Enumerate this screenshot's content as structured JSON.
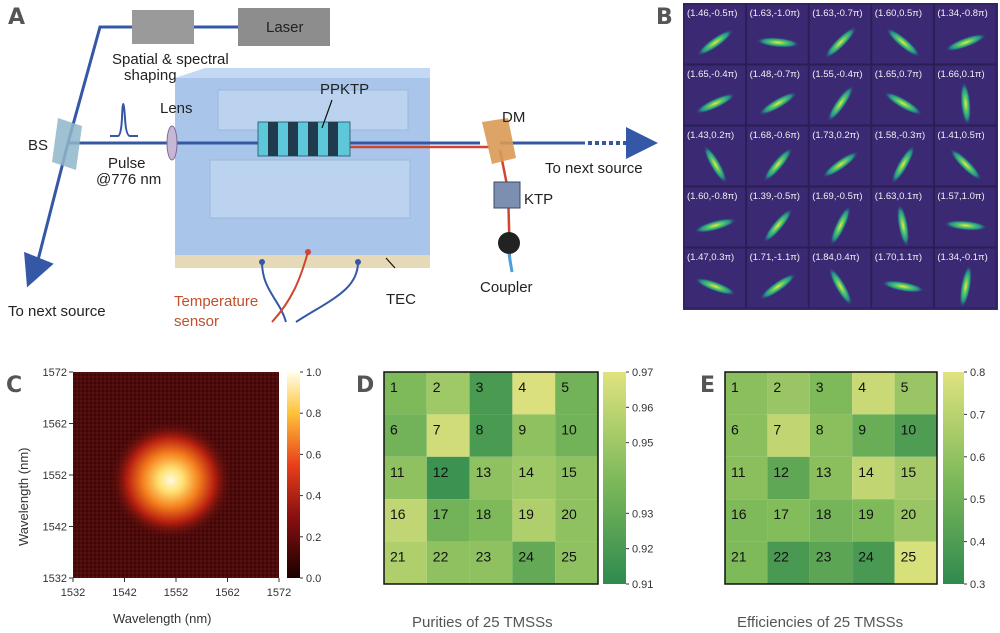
{
  "panels": {
    "a": "A",
    "b": "B",
    "c": "C",
    "d": "D",
    "e": "E"
  },
  "setup_labels": {
    "laser": "Laser",
    "shaping": [
      "Spatial & spectral",
      "shaping"
    ],
    "lens": "Lens",
    "ppktp": "PPKTP",
    "dm": "DM",
    "bs": "BS",
    "pulse": "Pulse",
    "wavelength": "@776 nm",
    "next_right": "To next source",
    "next_left": "To next source",
    "ktp": "KTP",
    "coupler": "Coupler",
    "tec": "TEC",
    "temperature": [
      "Temperature",
      "sensor"
    ]
  },
  "colors": {
    "beam_blue": "#3558a6",
    "beam_red": "#d2452f",
    "table_blue": "#a9c6ea",
    "viridis_low": "#2f8a4e",
    "viridis_high": "#e0e37f",
    "hot_bg": "#4a0a0a"
  },
  "b_grid": [
    [
      "(1.46,-0.5π)",
      "(1.63,-1.0π)",
      "(1.63,-0.7π)",
      "(1.60,0.5π)",
      "(1.34,-0.8π)"
    ],
    [
      "(1.65,-0.4π)",
      "(1.48,-0.7π)",
      "(1.55,-0.4π)",
      "(1.65,0.7π)",
      "(1.66,0.1π)"
    ],
    [
      "(1.43,0.2π)",
      "(1.68,-0.6π)",
      "(1.73,0.2π)",
      "(1.58,-0.3π)",
      "(1.41,0.5π)"
    ],
    [
      "(1.60,-0.8π)",
      "(1.39,-0.5π)",
      "(1.69,-0.5π)",
      "(1.63,0.1π)",
      "(1.57,1.0π)"
    ],
    [
      "(1.47,0.3π)",
      "(1.71,-1.1π)",
      "(1.84,0.4π)",
      "(1.70,1.1π)",
      "(1.34,-0.1π)"
    ]
  ],
  "b_angles": [
    [
      -35,
      5,
      -45,
      40,
      -20
    ],
    [
      -25,
      -30,
      -55,
      30,
      85
    ],
    [
      60,
      -50,
      -35,
      -60,
      45
    ],
    [
      -15,
      -50,
      -65,
      80,
      5
    ],
    [
      20,
      -35,
      60,
      10,
      -80
    ]
  ],
  "chart_data": [
    {
      "type": "heatmap",
      "panel": "C",
      "xlabel": "Wavelength (nm)",
      "ylabel": "Wavelength (nm)",
      "xticks": [
        "1532",
        "1542",
        "1552",
        "1562",
        "1572"
      ],
      "yticks": [
        "1572",
        "1562",
        "1552",
        "1542",
        "1532"
      ],
      "xlim": [
        1532,
        1572
      ],
      "ylim": [
        1532,
        1572
      ],
      "center": [
        1551,
        1551
      ],
      "colorbar_ticks": [
        "1.0",
        "0.8",
        "0.6",
        "0.4",
        "0.2",
        "0.0"
      ],
      "colorbar_range": [
        0,
        1
      ]
    },
    {
      "type": "heatmap",
      "panel": "D",
      "caption": "Purities of 25 TMSSs",
      "cell_labels": [
        "1",
        "2",
        "3",
        "4",
        "5",
        "6",
        "7",
        "8",
        "9",
        "10",
        "11",
        "12",
        "13",
        "14",
        "15",
        "16",
        "17",
        "18",
        "19",
        "20",
        "21",
        "22",
        "23",
        "24",
        "25"
      ],
      "values": [
        0.94,
        0.95,
        0.92,
        0.968,
        0.935,
        0.935,
        0.965,
        0.92,
        0.945,
        0.935,
        0.945,
        0.915,
        0.945,
        0.95,
        0.945,
        0.96,
        0.935,
        0.94,
        0.955,
        0.945,
        0.955,
        0.945,
        0.945,
        0.93,
        0.945
      ],
      "colorbar_ticks": [
        "0.97",
        "0.96",
        "0.95",
        "0.93",
        "0.92",
        "0.91"
      ],
      "colorbar_range": [
        0.91,
        0.97
      ]
    },
    {
      "type": "heatmap",
      "panel": "E",
      "caption": "Efficiencies of 25 TMSSs",
      "cell_labels": [
        "1",
        "2",
        "3",
        "4",
        "5",
        "6",
        "7",
        "8",
        "9",
        "10",
        "11",
        "12",
        "13",
        "14",
        "15",
        "16",
        "17",
        "18",
        "19",
        "20",
        "21",
        "22",
        "23",
        "24",
        "25"
      ],
      "values": [
        0.58,
        0.62,
        0.55,
        0.74,
        0.62,
        0.58,
        0.72,
        0.58,
        0.48,
        0.4,
        0.58,
        0.45,
        0.58,
        0.72,
        0.65,
        0.55,
        0.56,
        0.52,
        0.55,
        0.62,
        0.55,
        0.38,
        0.44,
        0.38,
        0.78
      ],
      "colorbar_ticks": [
        "0.8",
        "0.7",
        "0.6",
        "0.5",
        "0.4",
        "0.3"
      ],
      "colorbar_range": [
        0.3,
        0.8
      ]
    }
  ]
}
